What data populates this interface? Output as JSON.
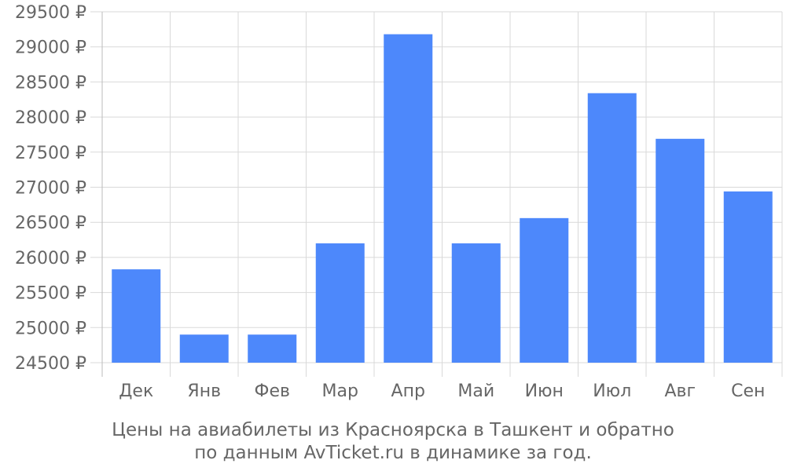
{
  "chart_data": {
    "type": "bar",
    "title": "",
    "xlabel": "",
    "ylabel": "",
    "categories": [
      "Дек",
      "Янв",
      "Фев",
      "Мар",
      "Апр",
      "Май",
      "Июн",
      "Июл",
      "Авг",
      "Сен"
    ],
    "values": [
      25830,
      24900,
      24900,
      26200,
      29180,
      26200,
      26560,
      28340,
      27690,
      26940
    ],
    "ylim": [
      24500,
      29500
    ],
    "yticks": [
      24500,
      25000,
      25500,
      26000,
      26500,
      27000,
      27500,
      28000,
      28500,
      29000,
      29500
    ],
    "y_unit": "₽",
    "grid": true,
    "bar_color": "#4d88fb",
    "grid_color": "#d9d9d9",
    "text_color": "#666666"
  },
  "caption": {
    "line1": "Цены на авиабилеты из Красноярска в Ташкент и обратно",
    "line2": "по данным AvTicket.ru в динамике за год."
  }
}
